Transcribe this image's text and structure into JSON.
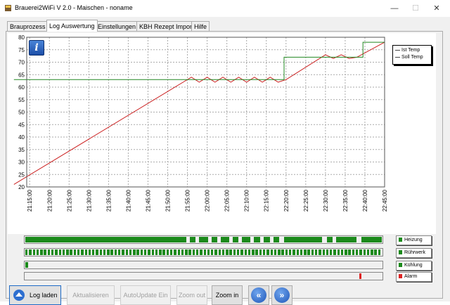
{
  "window": {
    "title": "Brauerei2WiFi V 2.0 - Maischen - noname",
    "minimize_glyph": "—",
    "maximize_glyph": "☐",
    "close_glyph": "✕"
  },
  "tabs": [
    {
      "label": "Brauprozess",
      "active": false
    },
    {
      "label": "Log Auswertung",
      "active": true
    },
    {
      "label": "Einstellungen",
      "active": false
    },
    {
      "label": "KBH Rezept Import",
      "active": false
    },
    {
      "label": "Hilfe",
      "active": false
    }
  ],
  "info_button": {
    "glyph": "i",
    "icon": "info-icon"
  },
  "chart_data": {
    "type": "line",
    "ylim": [
      20,
      80
    ],
    "yticks": [
      "20",
      "25",
      "30",
      "35",
      "40",
      "45",
      "50",
      "55",
      "60",
      "65",
      "70",
      "75",
      "80"
    ],
    "xticks": [
      "21:15:00",
      "21:20:00",
      "21:25:00",
      "21:30:00",
      "21:35:00",
      "21:40:00",
      "21:45:00",
      "21:50:00",
      "21:55:00",
      "22:00:00",
      "22:05:00",
      "22:10:00",
      "22:15:00",
      "22:20:00",
      "22:25:00",
      "22:30:00",
      "22:35:00",
      "22:40:00",
      "22:45:00"
    ],
    "grid": true,
    "legend_position": "top-right",
    "series": [
      {
        "name": "Ist Temp",
        "color": "#cc2222",
        "points": [
          [
            "21:11:00",
            21
          ],
          [
            "21:56:00",
            64
          ],
          [
            "21:58:00",
            62
          ],
          [
            "22:00:00",
            64
          ],
          [
            "22:02:00",
            62
          ],
          [
            "22:04:00",
            64
          ],
          [
            "22:06:00",
            62
          ],
          [
            "22:08:00",
            64
          ],
          [
            "22:10:00",
            62
          ],
          [
            "22:12:00",
            64
          ],
          [
            "22:14:00",
            62
          ],
          [
            "22:16:00",
            64
          ],
          [
            "22:18:00",
            62
          ],
          [
            "22:20:00",
            63
          ],
          [
            "22:30:00",
            73
          ],
          [
            "22:32:00",
            71.5
          ],
          [
            "22:34:00",
            73
          ],
          [
            "22:36:00",
            71.5
          ],
          [
            "22:38:00",
            72
          ],
          [
            "22:45:00",
            78
          ]
        ]
      },
      {
        "name": "Soll Temp",
        "color": "#228822",
        "points": [
          [
            "21:11:00",
            63
          ],
          [
            "22:19:30",
            63
          ],
          [
            "22:19:30",
            72
          ],
          [
            "22:39:30",
            72
          ],
          [
            "22:39:30",
            78
          ],
          [
            "22:45:00",
            78
          ]
        ]
      }
    ]
  },
  "status_bars": [
    {
      "label": "Heizung",
      "color": "#1b8a1b",
      "on_intervals": [
        [
          0,
          0.452
        ],
        [
          0.462,
          0.478
        ],
        [
          0.488,
          0.512
        ],
        [
          0.522,
          0.538
        ],
        [
          0.548,
          0.572
        ],
        [
          0.582,
          0.598
        ],
        [
          0.608,
          0.632
        ],
        [
          0.642,
          0.658
        ],
        [
          0.668,
          0.686
        ],
        [
          0.696,
          0.712
        ],
        [
          0.725,
          0.832
        ],
        [
          0.846,
          0.862
        ],
        [
          0.872,
          0.93
        ],
        [
          0.942,
          1
        ]
      ]
    },
    {
      "label": "Rührwerk",
      "color": "#1b8a1b",
      "pattern": "striped"
    },
    {
      "label": "Kühlung",
      "color": "#1b8a1b",
      "on_intervals": [
        [
          0,
          0.008
        ]
      ]
    },
    {
      "label": "Alarm",
      "color": "#dd2222",
      "on_intervals": [
        [
          0.937,
          0.943
        ]
      ]
    }
  ],
  "buttons": [
    {
      "label": "Log laden",
      "enabled": true,
      "icon": "open-log-icon"
    },
    {
      "label": "Aktualisieren",
      "enabled": false
    },
    {
      "label": "AutoUpdate Ein",
      "enabled": false
    },
    {
      "label": "Zoom out",
      "enabled": false
    },
    {
      "label": "Zoom in",
      "enabled": true
    }
  ],
  "nav": {
    "back_glyph": "«",
    "forward_glyph": "»"
  }
}
